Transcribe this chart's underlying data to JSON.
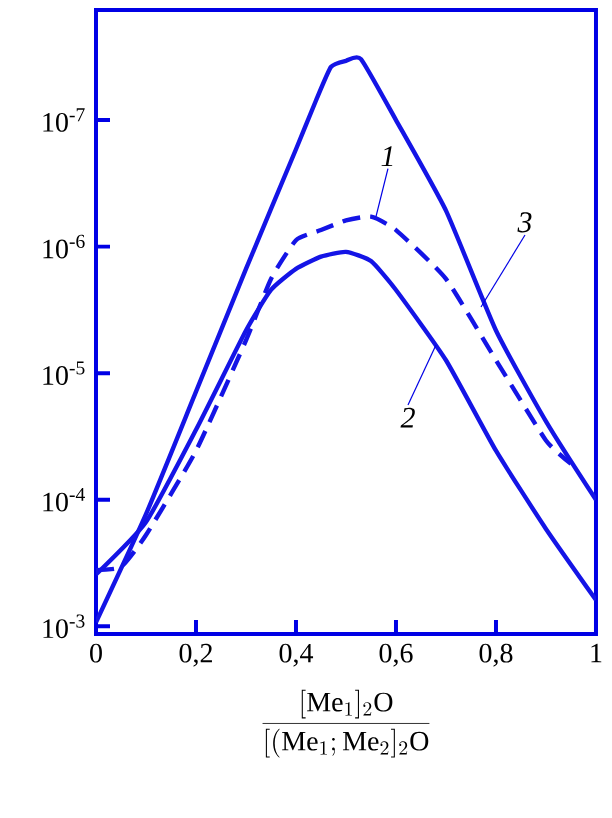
{
  "chart_data": {
    "type": "line",
    "log": true,
    "marker": "none",
    "xlabel": "\\frac{[\\mathrm{Me}_1]_2\\mathrm{O}}{[(\\mathrm{Me}_1;\\mathrm{Me}_2]_2\\mathrm{O}}",
    "x": [
      0,
      0.05,
      0.1,
      0.2,
      0.3,
      0.35,
      0.4,
      0.45,
      0.5,
      0.55,
      0.6,
      0.7,
      0.8,
      0.9,
      0.95
    ],
    "series": [
      {
        "color": "#1414e6",
        "line_style": "dashed",
        "values": [
          0.00036,
          0.00034,
          0.00019,
          4.1e-05,
          5.5e-06,
          1.8e-06,
          8.9e-07,
          7.4e-07,
          6.2e-07,
          5.8e-07,
          7.4e-07,
          1.8e-06,
          7.9e-06,
          3.4e-05,
          5.2e-05
        ]
      },
      {
        "color": "#1414e6",
        "line_style": "solid",
        "x": [
          0,
          0.1,
          0.2,
          0.3,
          0.35,
          0.4,
          0.45,
          0.5,
          0.55,
          0.6,
          0.7,
          0.8,
          0.9,
          1.0
        ],
        "values": [
          0.00039,
          0.00015,
          2.8e-05,
          4.6e-06,
          2.2e-06,
          1.5e-06,
          1.2e-06,
          1.1e-06,
          1.3e-06,
          2.2e-06,
          7.9e-06,
          4.1e-05,
          0.00017,
          0.00062
        ]
      },
      {
        "color": "#1414e6",
        "line_style": "solid",
        "x": [
          0,
          0.1,
          0.2,
          0.3,
          0.4,
          0.44,
          0.47,
          0.5,
          0.53,
          0.6,
          0.7,
          0.8,
          0.9,
          1.0
        ],
        "values": [
          0.00093,
          0.00013,
          1.4e-05,
          1.5e-06,
          1.7e-07,
          7e-08,
          3.8e-08,
          3.4e-08,
          3.3e-08,
          1e-07,
          5.2e-07,
          4.6e-06,
          2.4e-05,
          0.0001
        ]
      }
    ],
    "xlim": [
      0,
      1
    ],
    "ylim": [
      0.00115,
      1.35e-08
    ],
    "xticks": [
      0,
      {
        "value": 0.2,
        "label": "0,2"
      },
      {
        "value": 0.4,
        "label": "0,4"
      },
      {
        "value": 0.6,
        "label": "0,6"
      },
      {
        "value": 0.8,
        "label": "0,8"
      },
      1
    ],
    "yticks": [
      {
        "value": 0.001,
        "label": "10$^{-3}$"
      },
      {
        "value": 0.0001,
        "label": "10$^{-4}$"
      },
      {
        "value": 1e-05,
        "label": "10$^{-5}$"
      },
      {
        "value": 1e-06,
        "label": "10$^{-6}$"
      },
      {
        "value": 1e-07,
        "label": "10$^{-7}$"
      }
    ],
    "annotations": [
      {
        "text": "1",
        "x": 0.56,
        "y": 5.8e-07
      },
      {
        "text": "2",
        "x": 0.68,
        "y": 6e-06
      },
      {
        "text": "3",
        "x": 0.77,
        "y": 3e-06
      }
    ]
  }
}
